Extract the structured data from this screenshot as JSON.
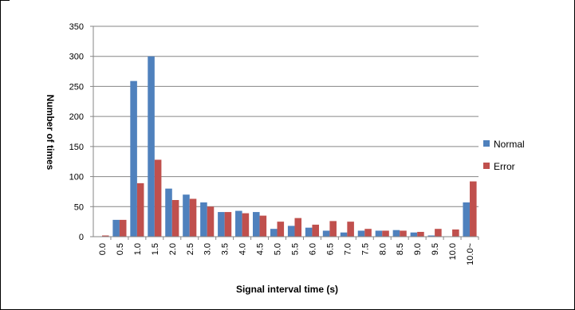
{
  "chart_data": {
    "type": "bar",
    "title": "",
    "xlabel": "Signal interval time (s)",
    "ylabel": "Number of times",
    "ylim": [
      0,
      350
    ],
    "yticks": [
      0,
      50,
      100,
      150,
      200,
      250,
      300,
      350
    ],
    "grid": true,
    "legend_position": "right",
    "categories": [
      "0.0",
      "0.5",
      "1.0",
      "1.5",
      "2.0",
      "2.5",
      "3.0",
      "3.5",
      "4.0",
      "4.5",
      "5.0",
      "5.5",
      "6.0",
      "6.5",
      "7.0",
      "7.5",
      "8.0",
      "8.5",
      "9.0",
      "9.5",
      "10.0",
      "10.0~"
    ],
    "series": [
      {
        "name": "Normal",
        "color": "#4f81bd",
        "values": [
          0,
          28,
          259,
          300,
          80,
          70,
          57,
          41,
          43,
          41,
          13,
          18,
          15,
          10,
          7,
          10,
          10,
          11,
          7,
          2,
          0,
          57
        ]
      },
      {
        "name": "Error",
        "color": "#c0504d",
        "values": [
          2,
          28,
          89,
          128,
          61,
          63,
          50,
          41,
          39,
          35,
          25,
          31,
          20,
          26,
          25,
          13,
          10,
          10,
          8,
          13,
          12,
          92
        ]
      }
    ]
  }
}
